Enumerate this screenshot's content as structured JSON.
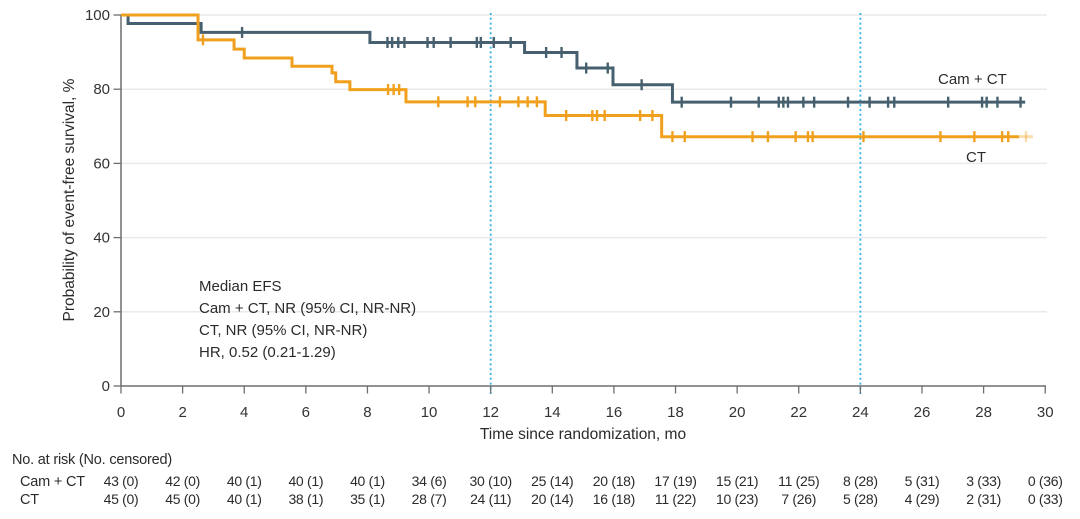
{
  "chart_data": {
    "type": "line",
    "variant": "kaplan_meier_step",
    "title": "",
    "xlabel": "Time since randomization, mo",
    "ylabel": "Probability of event-free survival, %",
    "xlim": [
      0,
      30
    ],
    "ylim": [
      0,
      100
    ],
    "x_ticks": [
      0,
      2,
      4,
      6,
      8,
      10,
      12,
      14,
      16,
      18,
      20,
      22,
      24,
      26,
      28,
      30
    ],
    "y_ticks": [
      0,
      20,
      40,
      60,
      80,
      100
    ],
    "grid_y": [
      20,
      40,
      60,
      80,
      100
    ],
    "guide_x": [
      12,
      24
    ],
    "colors": {
      "guide": "#35b1e5",
      "grid": "#eaeaea",
      "axis": "#6e6e6e",
      "text": "#2b2b2b",
      "cam_ct": "#46606f",
      "ct": "#f0a01d"
    },
    "legend_position": "right-of-curves",
    "series": [
      {
        "name": "Cam + CT",
        "color": "#46606f",
        "steps": [
          [
            0,
            100
          ],
          [
            0.23,
            97.7
          ],
          [
            2.6,
            95.3
          ],
          [
            8.08,
            92.6
          ],
          [
            13.1,
            89.9
          ],
          [
            14.8,
            85.7
          ],
          [
            15.97,
            81.2
          ],
          [
            17.9,
            76.5
          ]
        ],
        "end": 29.35,
        "censors": [
          3.93,
          8.65,
          8.8,
          9.0,
          9.2,
          9.95,
          10.15,
          10.7,
          11.55,
          11.68,
          12.1,
          12.65,
          13.8,
          14.3,
          15.1,
          15.8,
          16.9,
          18.2,
          19.8,
          20.7,
          21.35,
          21.5,
          21.65,
          22.15,
          22.5,
          23.6,
          24.3,
          24.9,
          25.1,
          26.85,
          27.95,
          28.1,
          28.45,
          29.2
        ]
      },
      {
        "name": "CT",
        "color": "#f0a01d",
        "steps": [
          [
            0,
            100
          ],
          [
            2.5,
            93.3
          ],
          [
            3.67,
            90.8
          ],
          [
            4.0,
            88.4
          ],
          [
            5.55,
            86.2
          ],
          [
            6.85,
            84.4
          ],
          [
            6.97,
            82.0
          ],
          [
            7.43,
            79.9
          ],
          [
            9.25,
            76.6
          ],
          [
            13.77,
            72.9
          ],
          [
            17.55,
            67.2
          ]
        ],
        "end": 29.15,
        "faint_end": 29.6,
        "censors": [
          2.66,
          8.67,
          8.85,
          9.03,
          10.3,
          11.25,
          11.5,
          12.3,
          12.9,
          13.2,
          13.5,
          14.45,
          15.3,
          15.45,
          15.7,
          16.85,
          17.25,
          17.9,
          18.3,
          20.5,
          21.0,
          21.9,
          22.3,
          22.45,
          24.1,
          26.6,
          27.7,
          28.6,
          28.8
        ]
      }
    ],
    "annotation": {
      "lines": [
        "Median EFS",
        "Cam + CT, NR (95% CI, NR-NR)",
        "CT, NR (95% CI, NR-NR)",
        "HR, 0.52 (0.21-1.29)"
      ]
    },
    "risk_table": {
      "header": "No. at risk (No. censored)",
      "time_points": [
        0,
        2,
        4,
        6,
        8,
        10,
        12,
        14,
        16,
        18,
        20,
        22,
        24,
        26,
        28,
        30
      ],
      "rows": [
        {
          "label": "Cam + CT",
          "values": [
            "43 (0)",
            "42 (0)",
            "40 (1)",
            "40 (1)",
            "40 (1)",
            "34 (6)",
            "30 (10)",
            "25 (14)",
            "20 (18)",
            "17 (19)",
            "15 (21)",
            "11 (25)",
            "8 (28)",
            "5 (31)",
            "3 (33)",
            "0 (36)"
          ]
        },
        {
          "label": "CT",
          "values": [
            "45 (0)",
            "45 (0)",
            "40 (1)",
            "38 (1)",
            "35 (1)",
            "28 (7)",
            "24 (11)",
            "20 (14)",
            "16 (18)",
            "11 (22)",
            "10 (23)",
            "7 (26)",
            "5 (28)",
            "4 (29)",
            "2 (31)",
            "0 (33)"
          ]
        }
      ]
    }
  }
}
